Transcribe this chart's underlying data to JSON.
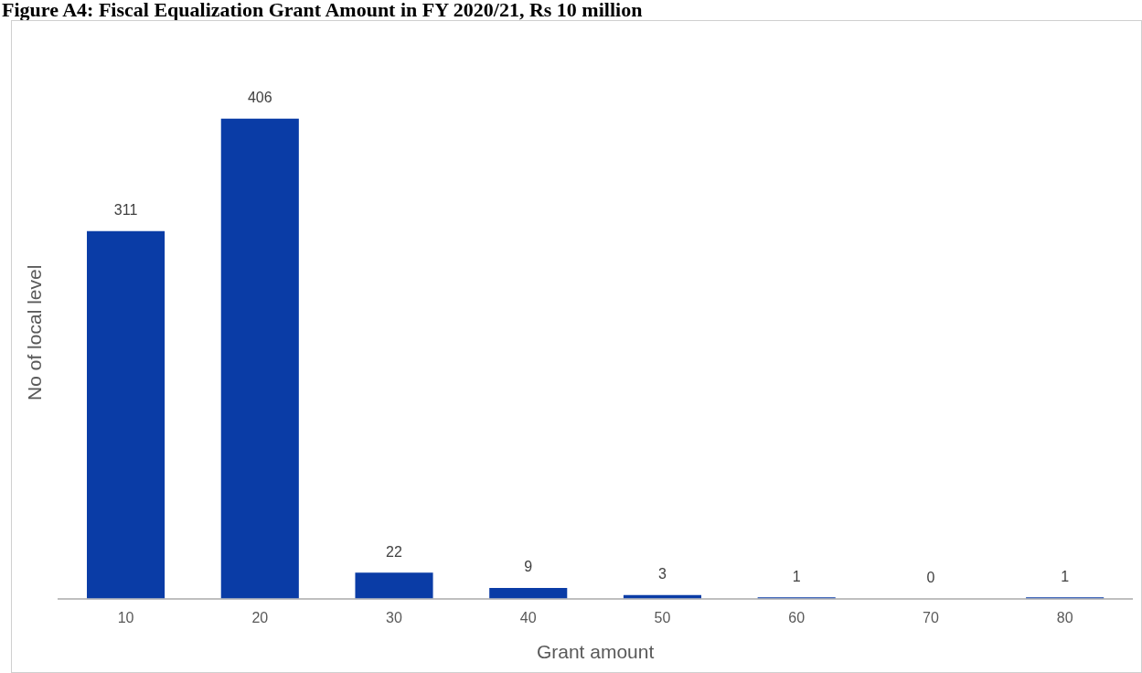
{
  "chart_data": {
    "type": "bar",
    "title": "Figure A4: Fiscal Equalization Grant Amount in FY 2020/21, Rs 10 million",
    "xlabel": "Grant amount",
    "ylabel": "No of local level",
    "categories": [
      "10",
      "20",
      "30",
      "40",
      "50",
      "60",
      "70",
      "80"
    ],
    "values": [
      311,
      406,
      22,
      9,
      3,
      1,
      0,
      1
    ],
    "color": "#0a3ca6",
    "data_labels": true,
    "grid": false,
    "legend": false
  }
}
